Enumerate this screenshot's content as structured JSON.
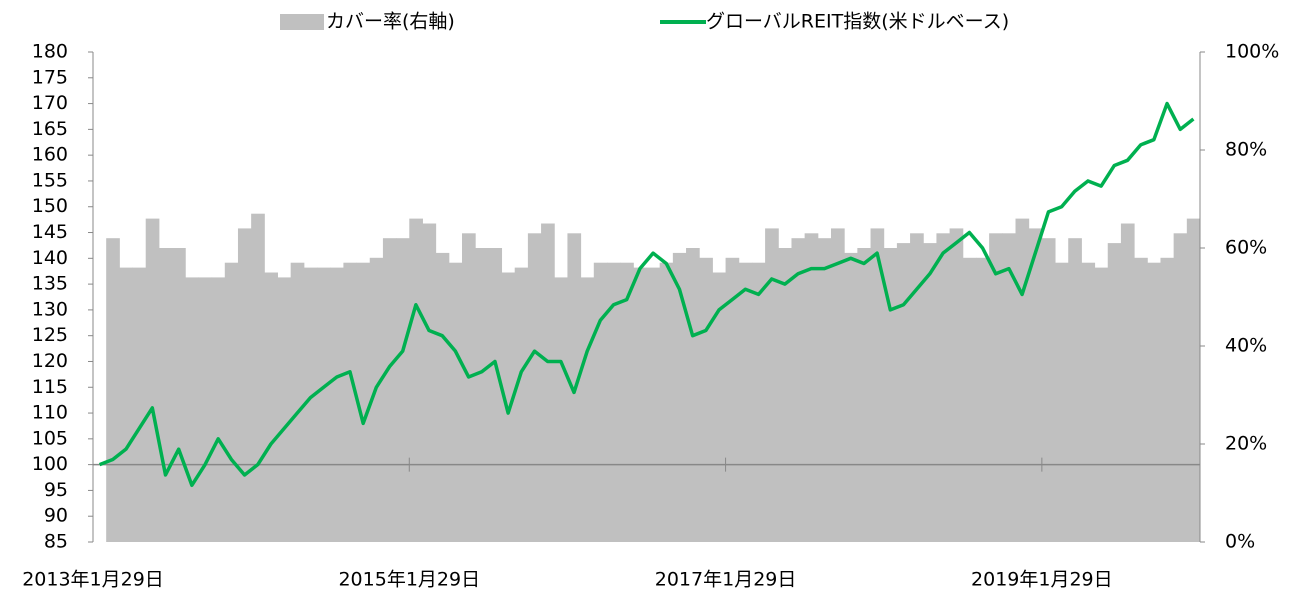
{
  "chart_data": {
    "type": "bar_line",
    "categories": [
      "2013年1月29日",
      null,
      null,
      null,
      null,
      null,
      null,
      null,
      null,
      null,
      null,
      null,
      null,
      null,
      null,
      null,
      null,
      null,
      null,
      null,
      null,
      null,
      null,
      null,
      "2015年1月29日",
      null,
      null,
      null,
      null,
      null,
      null,
      null,
      null,
      null,
      null,
      null,
      null,
      null,
      null,
      null,
      null,
      null,
      null,
      null,
      null,
      null,
      null,
      null,
      "2017年1月29日",
      null,
      null,
      null,
      null,
      null,
      null,
      null,
      null,
      null,
      null,
      null,
      null,
      null,
      null,
      null,
      null,
      null,
      null,
      null,
      null,
      null,
      null,
      null,
      "2019年1月29日",
      null,
      null,
      null,
      null,
      null,
      null,
      null,
      null,
      null,
      null,
      null
    ],
    "series": [
      {
        "name": "カバー率(右軸)",
        "type": "bar",
        "axis": "y2",
        "color": "#c0c0c0",
        "values": [
          0,
          62,
          56,
          56,
          66,
          60,
          60,
          54,
          54,
          54,
          57,
          64,
          67,
          55,
          54,
          57,
          56,
          56,
          56,
          57,
          57,
          58,
          62,
          62,
          66,
          65,
          59,
          57,
          63,
          60,
          60,
          55,
          56,
          63,
          65,
          54,
          63,
          54,
          57,
          57,
          57,
          56,
          56,
          57,
          59,
          60,
          58,
          55,
          58,
          57,
          57,
          64,
          60,
          62,
          63,
          62,
          64,
          59,
          60,
          64,
          60,
          61,
          63,
          61,
          63,
          64,
          58,
          58,
          63,
          63,
          66,
          64,
          62,
          57,
          62,
          57,
          56,
          61,
          65,
          58,
          57,
          58,
          63,
          66
        ]
      },
      {
        "name": "グローバルREIT指数(米ドルベース)",
        "type": "line",
        "axis": "y",
        "color": "#00b050",
        "values": [
          100,
          101,
          103,
          107,
          111,
          98,
          103,
          96,
          100,
          105,
          101,
          98,
          100,
          104,
          107,
          110,
          113,
          115,
          117,
          118,
          108,
          115,
          119,
          122,
          131,
          126,
          125,
          122,
          117,
          118,
          120,
          110,
          118,
          122,
          120,
          120,
          114,
          122,
          128,
          131,
          132,
          138,
          141,
          139,
          134,
          125,
          126,
          130,
          132,
          134,
          133,
          136,
          135,
          137,
          138,
          138,
          139,
          140,
          139,
          141,
          130,
          131,
          134,
          137,
          141,
          143,
          145,
          142,
          137,
          138,
          133,
          141,
          149,
          150,
          153,
          155,
          154,
          158,
          159,
          162,
          163,
          170,
          165,
          167
        ]
      }
    ],
    "ylim": [
      85,
      180
    ],
    "yticks": [
      85,
      90,
      95,
      100,
      105,
      110,
      115,
      120,
      125,
      130,
      135,
      140,
      145,
      150,
      155,
      160,
      165,
      170,
      175,
      180
    ],
    "y2lim": [
      0,
      100
    ],
    "y2ticks": [
      {
        "value": 0,
        "label": "0%"
      },
      {
        "value": 20,
        "label": "20%"
      },
      {
        "value": 40,
        "label": "40%"
      },
      {
        "value": 60,
        "label": "60%"
      },
      {
        "value": 80,
        "label": "80%"
      },
      {
        "value": 100,
        "label": "100%"
      }
    ],
    "xaxis_crossing": 100,
    "legend": "top",
    "grid": false
  }
}
